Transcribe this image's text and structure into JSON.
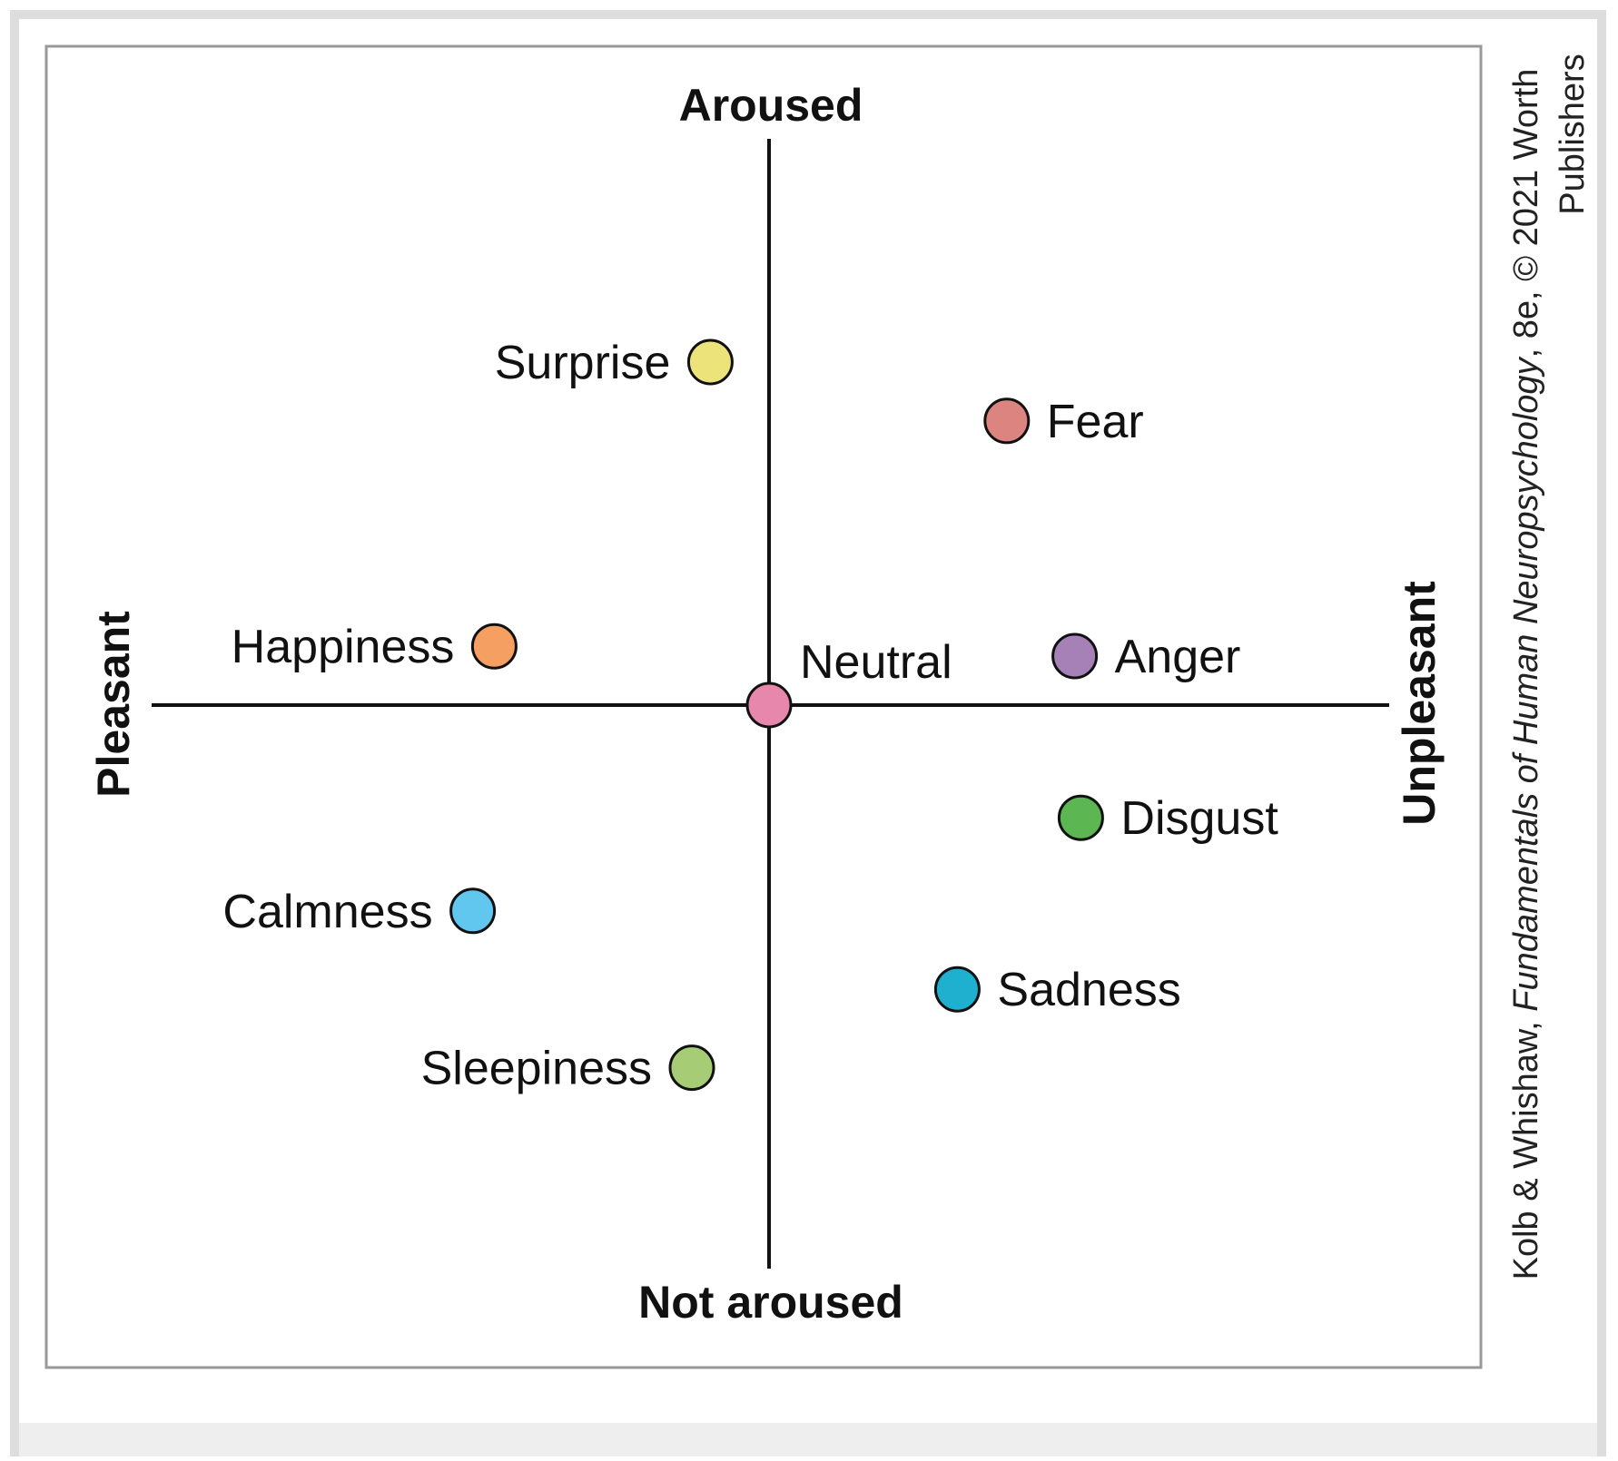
{
  "diagram": {
    "axis_labels": {
      "top": "Aroused",
      "bottom": "Not aroused",
      "left": "Pleasant",
      "right": "Unpleasant"
    },
    "emotions": [
      {
        "name": "Surprise",
        "valence": -0.19,
        "arousal": 0.7,
        "color": "#ece47a",
        "label_side": "left"
      },
      {
        "name": "Fear",
        "valence": 0.77,
        "arousal": 0.58,
        "color": "#dc8580",
        "label_side": "right"
      },
      {
        "name": "Happiness",
        "valence": -0.89,
        "arousal": 0.12,
        "color": "#f5a062",
        "label_side": "left"
      },
      {
        "name": "Neutral",
        "valence": 0.0,
        "arousal": 0.0,
        "color": "#e687ab",
        "label_side": "above-right"
      },
      {
        "name": "Anger",
        "valence": 0.99,
        "arousal": 0.1,
        "color": "#a681b8",
        "label_side": "right"
      },
      {
        "name": "Disgust",
        "valence": 1.01,
        "arousal": -0.23,
        "color": "#5cb752",
        "label_side": "right"
      },
      {
        "name": "Calmness",
        "valence": -0.96,
        "arousal": -0.42,
        "color": "#62c7ef",
        "label_side": "left"
      },
      {
        "name": "Sadness",
        "valence": 0.61,
        "arousal": -0.58,
        "color": "#1fb0cf",
        "label_side": "right"
      },
      {
        "name": "Sleepiness",
        "valence": -0.25,
        "arousal": -0.74,
        "color": "#a6cd76",
        "label_side": "left"
      }
    ],
    "credit": {
      "line1_pre": "Kolb & Whishaw, ",
      "line1_italic": "Fundamentals of Human Neuropsychology",
      "line1_post": ", 8e, © 2021 Worth",
      "line2": "Publishers"
    }
  }
}
